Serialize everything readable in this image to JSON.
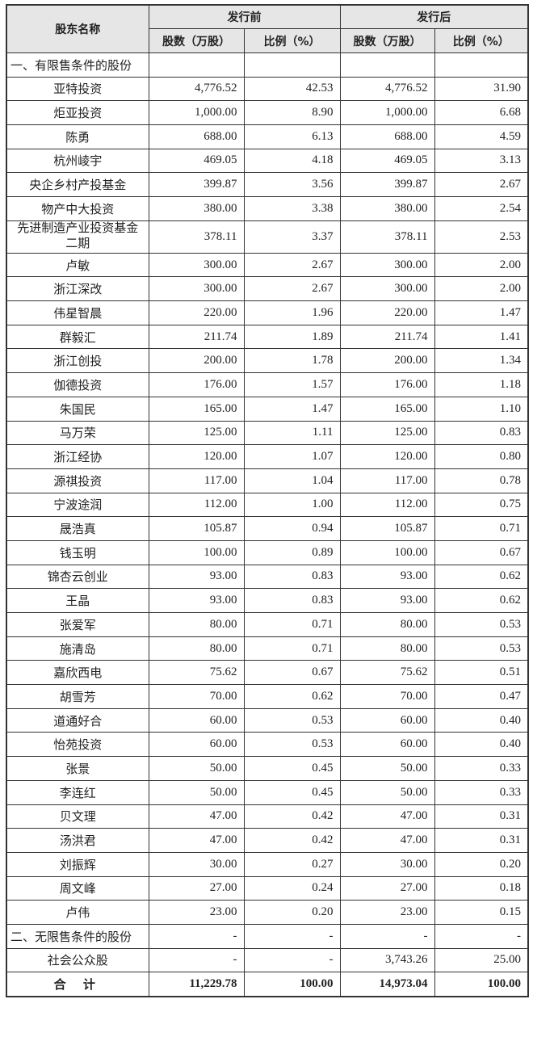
{
  "header": {
    "name": "股东名称",
    "before": "发行前",
    "after": "发行后",
    "shares": "股数（万股）",
    "ratio": "比例（%）"
  },
  "section1": "一、有限售条件的股份",
  "rows": [
    [
      "亚特投资",
      "4,776.52",
      "42.53",
      "4,776.52",
      "31.90"
    ],
    [
      "炬亚投资",
      "1,000.00",
      "8.90",
      "1,000.00",
      "6.68"
    ],
    [
      "陈勇",
      "688.00",
      "6.13",
      "688.00",
      "4.59"
    ],
    [
      "杭州崚宇",
      "469.05",
      "4.18",
      "469.05",
      "3.13"
    ],
    [
      "央企乡村产投基金",
      "399.87",
      "3.56",
      "399.87",
      "2.67"
    ],
    [
      "物产中大投资",
      "380.00",
      "3.38",
      "380.00",
      "2.54"
    ],
    [
      "先进制造产业投资基金二期",
      "378.11",
      "3.37",
      "378.11",
      "2.53"
    ],
    [
      "卢敏",
      "300.00",
      "2.67",
      "300.00",
      "2.00"
    ],
    [
      "浙江深改",
      "300.00",
      "2.67",
      "300.00",
      "2.00"
    ],
    [
      "伟星智晨",
      "220.00",
      "1.96",
      "220.00",
      "1.47"
    ],
    [
      "群毅汇",
      "211.74",
      "1.89",
      "211.74",
      "1.41"
    ],
    [
      "浙江创投",
      "200.00",
      "1.78",
      "200.00",
      "1.34"
    ],
    [
      "伽德投资",
      "176.00",
      "1.57",
      "176.00",
      "1.18"
    ],
    [
      "朱国民",
      "165.00",
      "1.47",
      "165.00",
      "1.10"
    ],
    [
      "马万荣",
      "125.00",
      "1.11",
      "125.00",
      "0.83"
    ],
    [
      "浙江经协",
      "120.00",
      "1.07",
      "120.00",
      "0.80"
    ],
    [
      "源祺投资",
      "117.00",
      "1.04",
      "117.00",
      "0.78"
    ],
    [
      "宁波途润",
      "112.00",
      "1.00",
      "112.00",
      "0.75"
    ],
    [
      "晟浩真",
      "105.87",
      "0.94",
      "105.87",
      "0.71"
    ],
    [
      "钱玉明",
      "100.00",
      "0.89",
      "100.00",
      "0.67"
    ],
    [
      "锦杏云创业",
      "93.00",
      "0.83",
      "93.00",
      "0.62"
    ],
    [
      "王晶",
      "93.00",
      "0.83",
      "93.00",
      "0.62"
    ],
    [
      "张爱军",
      "80.00",
      "0.71",
      "80.00",
      "0.53"
    ],
    [
      "施清岛",
      "80.00",
      "0.71",
      "80.00",
      "0.53"
    ],
    [
      "嘉欣西电",
      "75.62",
      "0.67",
      "75.62",
      "0.51"
    ],
    [
      "胡雪芳",
      "70.00",
      "0.62",
      "70.00",
      "0.47"
    ],
    [
      "道通好合",
      "60.00",
      "0.53",
      "60.00",
      "0.40"
    ],
    [
      "怡苑投资",
      "60.00",
      "0.53",
      "60.00",
      "0.40"
    ],
    [
      "张景",
      "50.00",
      "0.45",
      "50.00",
      "0.33"
    ],
    [
      "李连红",
      "50.00",
      "0.45",
      "50.00",
      "0.33"
    ],
    [
      "贝文理",
      "47.00",
      "0.42",
      "47.00",
      "0.31"
    ],
    [
      "汤洪君",
      "47.00",
      "0.42",
      "47.00",
      "0.31"
    ],
    [
      "刘振辉",
      "30.00",
      "0.27",
      "30.00",
      "0.20"
    ],
    [
      "周文峰",
      "27.00",
      "0.24",
      "27.00",
      "0.18"
    ],
    [
      "卢伟",
      "23.00",
      "0.20",
      "23.00",
      "0.15"
    ]
  ],
  "section2": [
    "二、无限售条件的股份",
    "-",
    "-",
    "-",
    "-"
  ],
  "public": [
    "社会公众股",
    "-",
    "-",
    "3,743.26",
    "25.00"
  ],
  "total": [
    "合 计",
    "11,229.78",
    "100.00",
    "14,973.04",
    "100.00"
  ]
}
